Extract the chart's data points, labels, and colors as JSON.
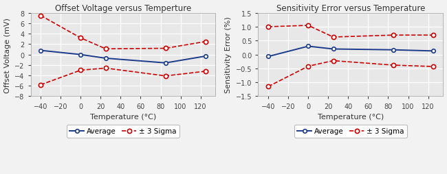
{
  "temp": [
    -40,
    0,
    25,
    85,
    125
  ],
  "offset_avg": [
    0.8,
    0.0,
    -0.7,
    -1.6,
    -0.3
  ],
  "offset_upper": [
    7.5,
    3.2,
    1.1,
    1.2,
    2.5
  ],
  "offset_lower": [
    -5.8,
    -3.0,
    -2.6,
    -4.1,
    -3.2
  ],
  "sens_avg": [
    -0.07,
    0.3,
    0.2,
    0.17,
    0.13
  ],
  "sens_upper": [
    1.0,
    1.05,
    0.63,
    0.7,
    0.7
  ],
  "sens_lower": [
    -1.15,
    -0.42,
    -0.22,
    -0.38,
    -0.43
  ],
  "title_left": "Offset Voltage versus Temperture",
  "title_right": "Sensitivity Error versus Temperature",
  "xlabel": "Temperature (°C)",
  "ylabel_left": "Offset Voltage (mV)",
  "ylabel_right": "Sensitivity Error (%)",
  "avg_color": "#1a3a8a",
  "sigma_color": "#cc0000",
  "plot_bg_color": "#e8e8e8",
  "grid_color": "#ffffff",
  "fig_bg_color": "#f2f2f2",
  "xlim": [
    -50,
    135
  ],
  "xticks": [
    -40,
    -20,
    0,
    20,
    40,
    60,
    80,
    100,
    120
  ],
  "ylim_left": [
    -8,
    8
  ],
  "yticks_left": [
    -8,
    -6,
    -4,
    -2,
    0,
    2,
    4,
    6,
    8
  ],
  "ylim_right": [
    -1.5,
    1.5
  ],
  "yticks_right": [
    -1.5,
    -1.0,
    -0.5,
    0.0,
    0.5,
    1.0,
    1.5
  ],
  "legend_avg": "Average",
  "legend_sigma": "± 3 Sigma",
  "title_fontsize": 8.5,
  "label_fontsize": 8,
  "tick_fontsize": 7,
  "legend_fontsize": 7.5
}
